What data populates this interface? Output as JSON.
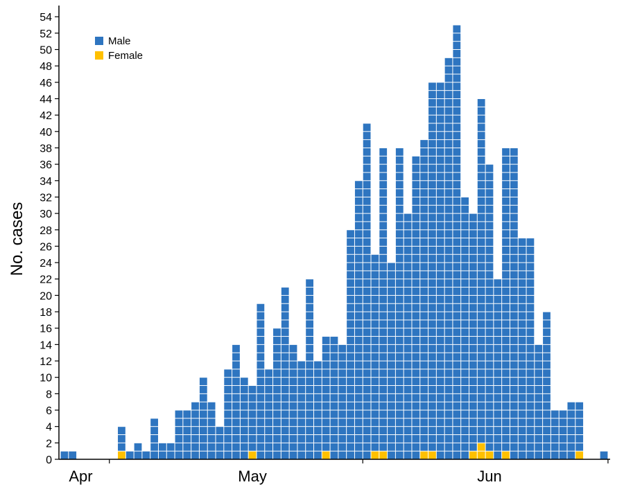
{
  "chart_data": {
    "type": "bar",
    "stacked": true,
    "ylabel": "No. cases",
    "xlabel": "",
    "ylim": [
      0,
      55
    ],
    "yticks": [
      0,
      2,
      4,
      6,
      8,
      10,
      12,
      14,
      16,
      18,
      20,
      22,
      24,
      26,
      28,
      30,
      32,
      34,
      36,
      38,
      40,
      42,
      44,
      46,
      48,
      50,
      52,
      54
    ],
    "month_labels": [
      {
        "label": "Apr",
        "day_index": 2
      },
      {
        "label": "May",
        "day_index": 23
      },
      {
        "label": "Jun",
        "day_index": 52
      }
    ],
    "legend": {
      "position": "top-left"
    },
    "colors": {
      "male": "#2e75c0",
      "female": "#ffc000",
      "grid": "#ffffff"
    },
    "days": 67,
    "series": [
      {
        "name": "Male",
        "values": [
          1,
          1,
          0,
          0,
          0,
          0,
          0,
          3,
          1,
          2,
          1,
          5,
          2,
          2,
          6,
          6,
          7,
          10,
          7,
          4,
          11,
          14,
          10,
          8,
          19,
          11,
          16,
          21,
          14,
          12,
          22,
          12,
          14,
          15,
          14,
          28,
          34,
          41,
          24,
          37,
          24,
          38,
          30,
          37,
          38,
          45,
          46,
          49,
          53,
          32,
          29,
          42,
          35,
          22,
          37,
          38,
          27,
          27,
          14,
          18,
          6,
          6,
          7,
          6,
          0,
          0,
          1
        ],
        "color": "#2e75c0"
      },
      {
        "name": "Female",
        "values": [
          0,
          0,
          0,
          0,
          0,
          0,
          0,
          1,
          0,
          0,
          0,
          0,
          0,
          0,
          0,
          0,
          0,
          0,
          0,
          0,
          0,
          0,
          0,
          1,
          0,
          0,
          0,
          0,
          0,
          0,
          0,
          0,
          1,
          0,
          0,
          0,
          0,
          0,
          1,
          1,
          0,
          0,
          0,
          0,
          1,
          1,
          0,
          0,
          0,
          0,
          1,
          2,
          1,
          0,
          1,
          0,
          0,
          0,
          0,
          0,
          0,
          0,
          0,
          1,
          0,
          0,
          0
        ],
        "color": "#ffc000"
      }
    ]
  }
}
